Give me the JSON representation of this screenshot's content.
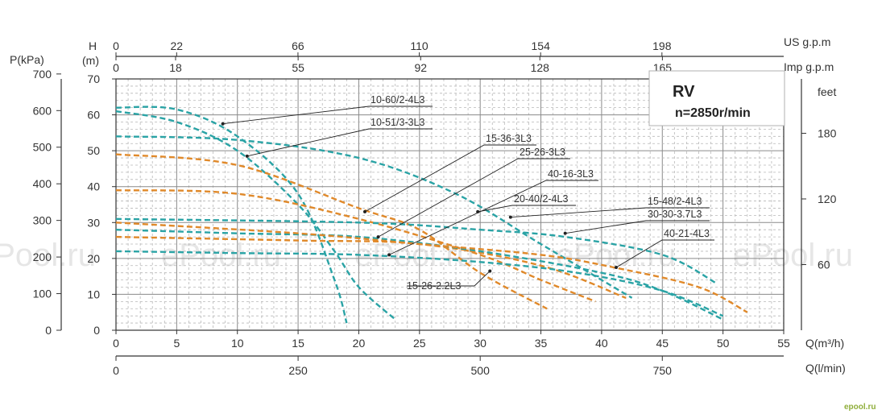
{
  "chart_data": {
    "type": "line",
    "model_box": {
      "title": "RV",
      "subtitle": "n=2850r/min"
    },
    "axes": {
      "q_m3h": {
        "label": "Q(m³/h)",
        "ticks": [
          0,
          5,
          10,
          15,
          20,
          25,
          30,
          35,
          40,
          45,
          50,
          55
        ],
        "range": [
          0,
          55
        ]
      },
      "q_lmin": {
        "label": "Q(l/min)",
        "ticks": [
          0,
          250,
          500,
          750
        ]
      },
      "us_gpm": {
        "label": "US g.p.m",
        "ticks": [
          0,
          22,
          66,
          110,
          154,
          198
        ]
      },
      "imp_gpm": {
        "label": "Imp g.p.m",
        "ticks": [
          0,
          18,
          55,
          92,
          128,
          165
        ]
      },
      "head_m": {
        "label": "H",
        "unit": "(m)",
        "ticks": [
          0,
          10,
          20,
          30,
          40,
          50,
          60,
          70
        ],
        "range": [
          0,
          70
        ]
      },
      "pressure_kpa": {
        "label": "P(kPa)",
        "ticks": [
          0,
          100,
          200,
          300,
          400,
          500,
          600,
          700
        ]
      },
      "feet": {
        "label": "feet",
        "ticks": [
          60,
          120,
          180
        ]
      }
    },
    "series": [
      {
        "name": "10-60/2-4L3",
        "color": "#2aa3a5",
        "points": [
          [
            0,
            62
          ],
          [
            5,
            61.5
          ],
          [
            10,
            54
          ],
          [
            15,
            38
          ],
          [
            18,
            14
          ],
          [
            19,
            2
          ]
        ],
        "label_anchor": [
          8.8,
          57.5
        ]
      },
      {
        "name": "10-51/3-3L3",
        "color": "#2aa3a5",
        "points": [
          [
            0,
            61
          ],
          [
            5,
            58
          ],
          [
            10,
            50
          ],
          [
            15,
            35
          ],
          [
            18,
            22
          ],
          [
            20,
            12
          ],
          [
            23,
            3
          ]
        ],
        "label_anchor": [
          10.8,
          48.5
        ]
      },
      {
        "name": "15-36-3L3",
        "color": "#e0892a",
        "points": [
          [
            0,
            49
          ],
          [
            10,
            46
          ],
          [
            20,
            34
          ],
          [
            25,
            28
          ],
          [
            30,
            16
          ],
          [
            35.5,
            6
          ]
        ],
        "label_anchor": [
          20.5,
          33
        ]
      },
      {
        "name": "25-26-3L3",
        "color": "#e0892a",
        "points": [
          [
            0,
            39
          ],
          [
            10,
            38
          ],
          [
            20,
            31
          ],
          [
            30,
            21
          ],
          [
            35,
            14
          ],
          [
            39.5,
            8
          ]
        ],
        "label_anchor": [
          21.6,
          26
        ]
      },
      {
        "name": "40-16-3L3",
        "color": "#e0892a",
        "points": [
          [
            0,
            26
          ],
          [
            15,
            25
          ],
          [
            25,
            24
          ],
          [
            35,
            18
          ],
          [
            42,
            9
          ]
        ],
        "label_anchor": [
          22.5,
          21
        ]
      },
      {
        "name": "20-40/2-4L3",
        "color": "#2aa3a5",
        "points": [
          [
            0,
            54
          ],
          [
            10,
            53
          ],
          [
            20,
            48
          ],
          [
            28,
            38
          ],
          [
            35,
            24
          ],
          [
            42.5,
            9
          ]
        ],
        "label_anchor": [
          29.8,
          33
        ]
      },
      {
        "name": "15-48/2-4L3",
        "color": "#2aa3a5",
        "points": [
          [
            0,
            31
          ],
          [
            20,
            30
          ],
          [
            30,
            28
          ],
          [
            37,
            26
          ],
          [
            45,
            21
          ],
          [
            49.5,
            13
          ]
        ],
        "label_anchor": [
          32.5,
          31.5
        ]
      },
      {
        "name": "30-30-3.7L3",
        "color": "#2aa3a5",
        "points": [
          [
            0,
            28
          ],
          [
            10,
            27
          ],
          [
            20,
            26
          ],
          [
            30,
            22
          ],
          [
            40,
            16
          ],
          [
            45,
            11
          ],
          [
            50,
            3
          ]
        ],
        "label_anchor": [
          37,
          27
        ]
      },
      {
        "name": "40-21-4L3",
        "color": "#e0892a",
        "points": [
          [
            0,
            30
          ],
          [
            15,
            27
          ],
          [
            25,
            24
          ],
          [
            35,
            21
          ],
          [
            41,
            17.5
          ],
          [
            48,
            12
          ],
          [
            52,
            5
          ]
        ],
        "label_anchor": [
          41.2,
          17.5
        ]
      },
      {
        "name": "15-26-2.2L3",
        "color": "#2aa3a5",
        "points": [
          [
            0,
            22
          ],
          [
            10,
            21.5
          ],
          [
            20,
            21
          ],
          [
            30,
            19
          ],
          [
            38,
            16
          ],
          [
            45,
            11
          ],
          [
            50,
            4
          ]
        ],
        "label_anchor": [
          30.8,
          16.5
        ]
      }
    ],
    "watermarks": [
      "ePool.ru",
      "ePool.ru",
      "ePool.ru",
      "ePool.ru",
      "ePool.ru"
    ],
    "corner_logo": "epool.ru"
  }
}
